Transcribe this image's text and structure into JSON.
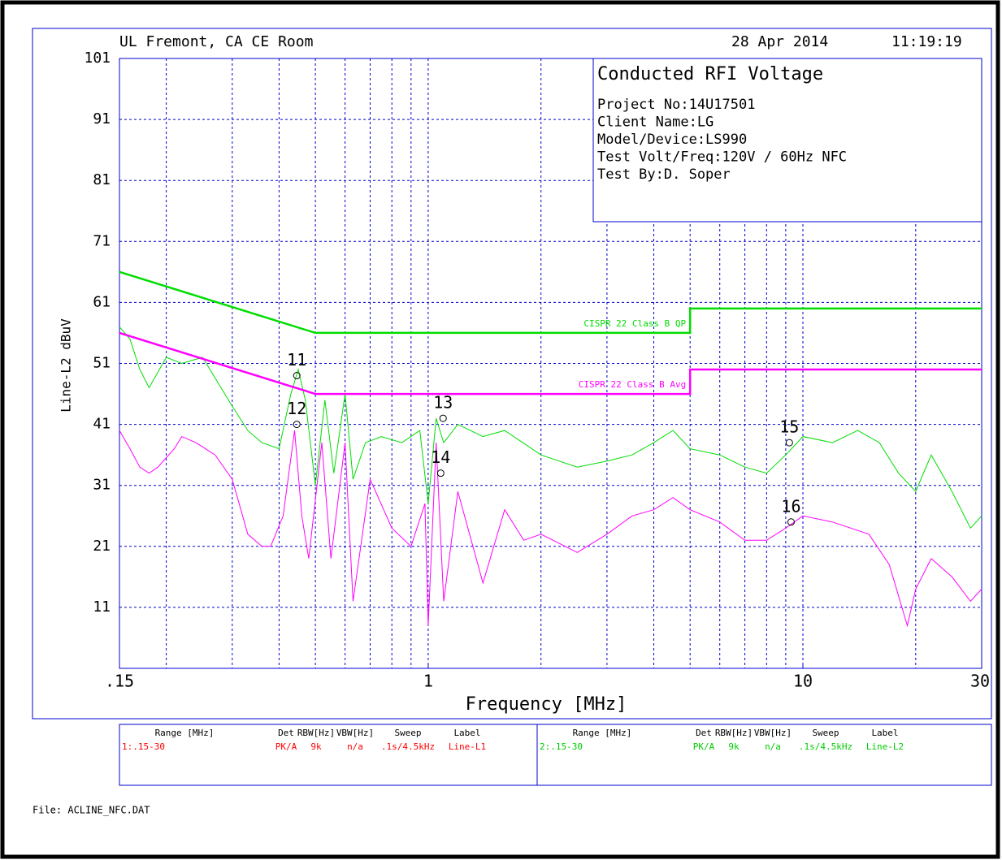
{
  "chart_data": {
    "type": "line",
    "site": "UL Fremont, CA CE Room",
    "date": "28 Apr 2014",
    "time": "11:19:19",
    "title": "Conducted RFI Voltage",
    "info_lines": [
      "Project No:14U17501",
      "Client Name:LG",
      "Model/Device:LS990",
      "Test Volt/Freq:120V / 60Hz NFC",
      "Test By:D. Soper"
    ],
    "y_label": "Line-L2 dBuV",
    "x_label": "Frequency [MHz]",
    "x_log": true,
    "grid": true,
    "xlim": [
      0.15,
      30
    ],
    "ylim": [
      1,
      101
    ],
    "xticks": [
      {
        "value": 0.15,
        "label": ".15"
      },
      1,
      10,
      30
    ],
    "xgrid": [
      0.2,
      0.3,
      0.4,
      0.5,
      0.6,
      0.7,
      0.8,
      0.9,
      1,
      2,
      3,
      4,
      5,
      6,
      7,
      8,
      9,
      10,
      20
    ],
    "yticks": [
      11,
      21,
      31,
      41,
      51,
      61,
      71,
      81,
      91,
      101
    ],
    "series": [
      {
        "color": "#00dd00",
        "x": [
          0.15,
          0.16,
          0.17,
          0.18,
          0.2,
          0.22,
          0.25,
          0.28,
          0.3,
          0.33,
          0.36,
          0.4,
          0.43,
          0.45,
          0.47,
          0.5,
          0.53,
          0.56,
          0.6,
          0.63,
          0.68,
          0.75,
          0.85,
          0.95,
          1.0,
          1.05,
          1.1,
          1.2,
          1.4,
          1.6,
          2,
          2.5,
          3,
          3.5,
          4,
          4.5,
          5,
          6,
          7,
          8,
          9,
          10,
          12,
          14,
          16,
          18,
          20,
          22,
          25,
          28,
          30
        ],
        "values": [
          57,
          55,
          50,
          47,
          52,
          51,
          52,
          47,
          44,
          40,
          38,
          37,
          46,
          50,
          45,
          31,
          45,
          33,
          46,
          32,
          38,
          39,
          38,
          40,
          28,
          42,
          38,
          41,
          39,
          40,
          36,
          34,
          35,
          36,
          38,
          40,
          37,
          36,
          34,
          33,
          36,
          39,
          38,
          40,
          38,
          33,
          30,
          36,
          30,
          24,
          26
        ]
      },
      {
        "color": "#ff00ff",
        "x": [
          0.15,
          0.16,
          0.17,
          0.18,
          0.19,
          0.21,
          0.22,
          0.24,
          0.27,
          0.3,
          0.33,
          0.36,
          0.38,
          0.41,
          0.44,
          0.46,
          0.48,
          0.52,
          0.55,
          0.6,
          0.63,
          0.7,
          0.8,
          0.9,
          0.98,
          1.0,
          1.05,
          1.1,
          1.2,
          1.4,
          1.6,
          1.8,
          2,
          2.5,
          3,
          3.5,
          4,
          4.5,
          5,
          6,
          7,
          8,
          9,
          10,
          12,
          15,
          17,
          19,
          20,
          22,
          25,
          28,
          30
        ],
        "values": [
          40,
          37,
          34,
          33,
          34,
          37,
          39,
          38,
          36,
          32,
          23,
          21,
          21,
          26,
          40,
          26,
          19,
          38,
          19,
          38,
          12,
          32,
          24,
          21,
          28,
          8,
          38,
          12,
          30,
          15,
          27,
          22,
          23,
          20,
          23,
          26,
          27,
          29,
          27,
          25,
          22,
          22,
          24,
          26,
          25,
          23,
          18,
          8,
          14,
          19,
          16,
          12,
          14
        ]
      },
      {
        "name": "CISPR 22 Class B QP",
        "color": "#00dd00",
        "limit": true,
        "x": [
          0.15,
          0.5,
          5,
          5,
          30
        ],
        "values": [
          66,
          56,
          56,
          60,
          60
        ]
      },
      {
        "name": "CISPR 22 Class B Avg",
        "color": "#ff00ff",
        "limit": true,
        "x": [
          0.15,
          0.5,
          5,
          5,
          30
        ],
        "values": [
          56,
          46,
          46,
          50,
          50
        ]
      }
    ],
    "markers": [
      {
        "label": "11",
        "x": 0.446,
        "y": 49
      },
      {
        "label": "12",
        "x": 0.446,
        "y": 41
      },
      {
        "label": "13",
        "x": 1.096,
        "y": 42
      },
      {
        "label": "14",
        "x": 1.08,
        "y": 33
      },
      {
        "label": "15",
        "x": 9.2,
        "y": 38
      },
      {
        "label": "16",
        "x": 9.3,
        "y": 25
      }
    ],
    "legend_table": {
      "headers": [
        "Range [MHz]",
        "Det",
        "RBW[Hz]",
        "VBW[Hz]",
        "Sweep",
        "Label"
      ],
      "rows": [
        {
          "color": "#ff0000",
          "cells": [
            "1:.15-30",
            "PK/A",
            "9k",
            "n/a",
            ".1s/4.5kHz",
            "Line-L1"
          ]
        },
        {
          "color": "#00cc00",
          "cells": [
            "2:.15-30",
            "PK/A",
            "9k",
            "n/a",
            ".1s/4.5kHz",
            "Line-L2"
          ]
        }
      ]
    },
    "file": "File: ACLINE_NFC.DAT"
  }
}
